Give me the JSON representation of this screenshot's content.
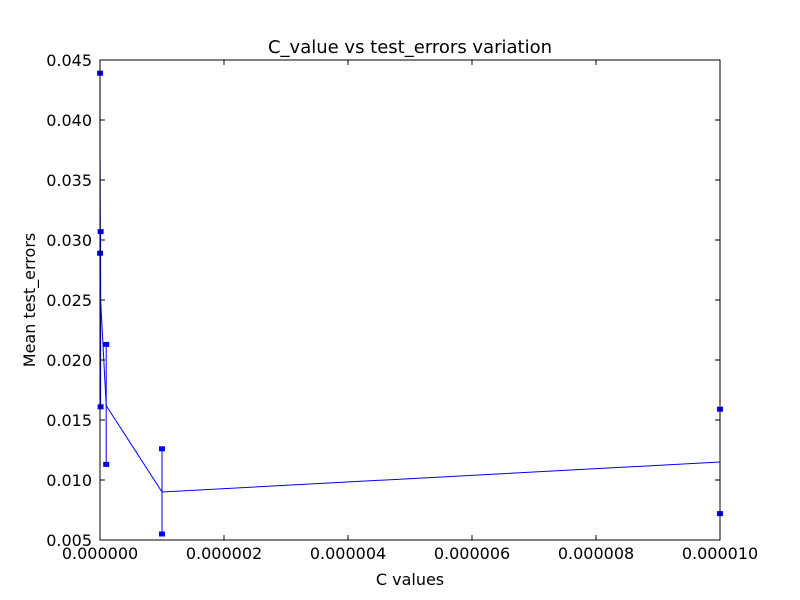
{
  "chart_data": {
    "type": "line",
    "title": "C_value vs test_errors variation",
    "xlabel": "C values",
    "ylabel": "Mean test_errors",
    "xlim": [
      0,
      1e-05
    ],
    "ylim": [
      0.005,
      0.045
    ],
    "x_ticks": [
      0,
      2e-06,
      4e-06,
      6e-06,
      8e-06,
      1e-05
    ],
    "x_tick_labels": [
      "0.000000",
      "0.000002",
      "0.000004",
      "0.000006",
      "0.000008",
      "0.000010"
    ],
    "y_ticks": [
      0.005,
      0.01,
      0.015,
      0.02,
      0.025,
      0.03,
      0.035,
      0.04,
      0.045
    ],
    "y_tick_labels": [
      "0.005",
      "0.010",
      "0.015",
      "0.020",
      "0.025",
      "0.030",
      "0.035",
      "0.040",
      "0.045"
    ],
    "grid": false,
    "line_color": "#0000ff",
    "series": [
      {
        "x": [
          1e-09,
          1e-08,
          1e-07,
          1e-06,
          1e-05
        ],
        "y": [
          0.0365,
          0.025,
          0.0162,
          0.009,
          0.0115
        ],
        "error_lower": [
          0.0289,
          0.0161,
          0.0113,
          0.0055,
          0.0072
        ],
        "error_upper": [
          0.0439,
          0.0307,
          0.0213,
          0.0126,
          0.0159
        ]
      }
    ]
  }
}
